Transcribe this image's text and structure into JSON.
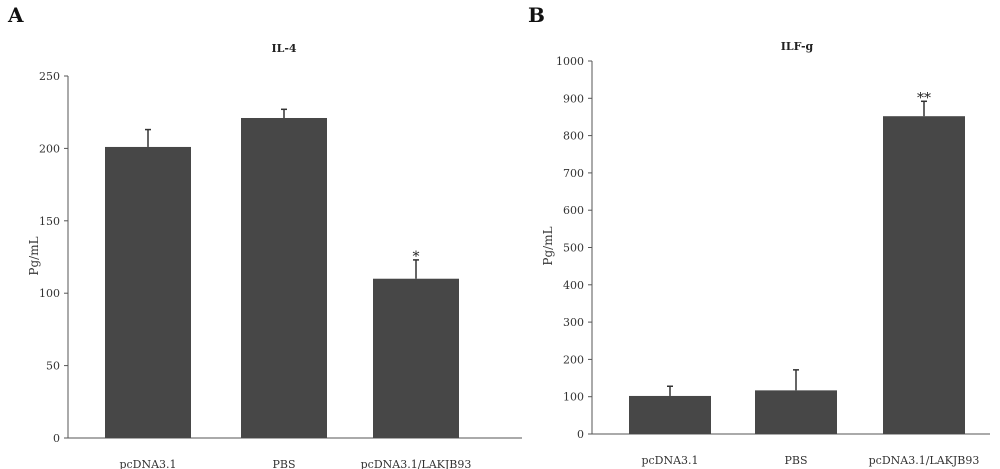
{
  "chart_data": [
    {
      "type": "bar",
      "panel_label": "A",
      "title": "IL-4",
      "ylabel": "Pg/mL",
      "xlabel": "",
      "ylim": [
        0,
        250
      ],
      "yticks": [
        0,
        50,
        100,
        150,
        200,
        250
      ],
      "categories": [
        "pcDNA3.1",
        "PBS",
        "pcDNA3.1/LAKJB93"
      ],
      "values": [
        201,
        221,
        110
      ],
      "error_upper": [
        213,
        227,
        123
      ],
      "annotations": [
        "",
        "",
        "*"
      ],
      "bar_color": "#474747",
      "grid": false
    },
    {
      "type": "bar",
      "panel_label": "B",
      "title": "ILF-g",
      "ylabel": "Pg/mL",
      "xlabel": "",
      "ylim": [
        0,
        1000
      ],
      "yticks": [
        0,
        100,
        200,
        300,
        400,
        500,
        600,
        700,
        800,
        900,
        1000
      ],
      "categories": [
        "pcDNA3.1",
        "PBS",
        "pcDNA3.1/LAKJB93"
      ],
      "values": [
        102,
        117,
        852
      ],
      "error_upper": [
        128,
        172,
        892
      ],
      "annotations": [
        "",
        "",
        "**"
      ],
      "bar_color": "#474747",
      "grid": false
    }
  ]
}
